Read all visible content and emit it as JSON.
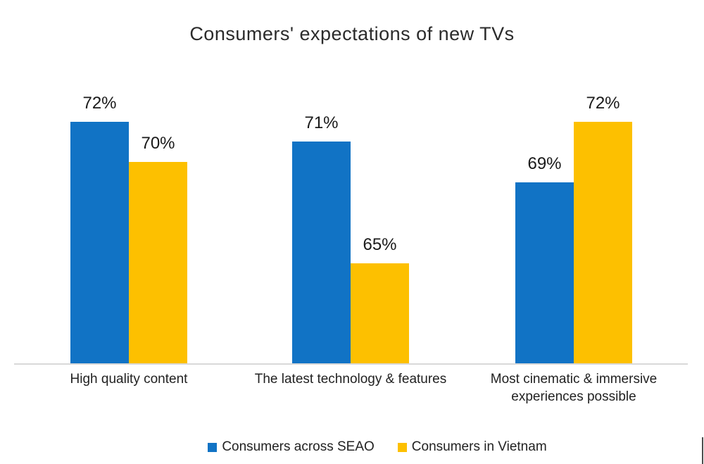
{
  "chart_data": {
    "type": "bar",
    "title": "Consumers' expectations of new TVs",
    "categories": [
      "High quality content",
      "The latest technology & features",
      "Most cinematic & immersive experiences possible"
    ],
    "series": [
      {
        "name": "Consumers across SEAO",
        "color": "#1173C5",
        "values": [
          72,
          71,
          69
        ],
        "labels": [
          "72%",
          "71%",
          "69%"
        ]
      },
      {
        "name": "Consumers in Vietnam",
        "color": "#FDC000",
        "values": [
          70,
          65,
          72
        ],
        "labels": [
          "70%",
          "65%",
          "72%"
        ]
      }
    ],
    "unit": "%",
    "ylim": [
      60,
      75
    ],
    "grid": false,
    "axis_visible": false,
    "baseline_color": "#D9D9D9",
    "data_label_color": "#1A1A1A",
    "legend_position": "bottom"
  },
  "legend": {
    "items": [
      {
        "label": "Consumers across SEAO",
        "color": "#1173C5"
      },
      {
        "label": "Consumers in Vietnam",
        "color": "#FDC000"
      }
    ]
  }
}
